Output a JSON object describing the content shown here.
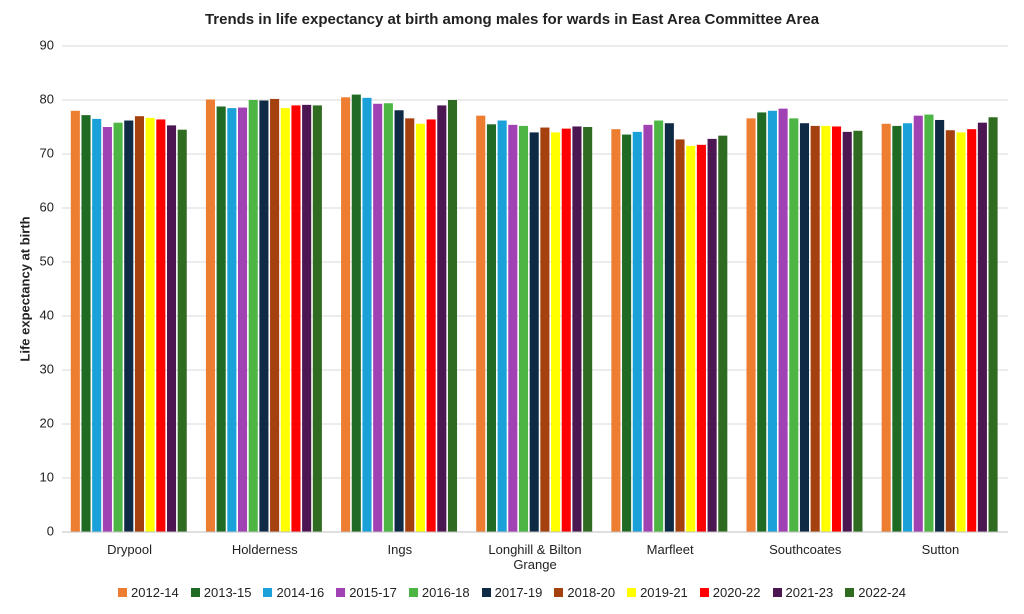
{
  "chart_data": {
    "type": "bar",
    "title": "Trends in life expectancy at birth among males for wards in East Area Committee Area",
    "y_label": "Life expectancy at birth",
    "categories": [
      "Drypool",
      "Holderness",
      "Ings",
      "Longhill & Bilton Grange",
      "Marfleet",
      "Southcoates",
      "Sutton"
    ],
    "ylim": [
      0,
      90
    ],
    "yticks": [
      0,
      10,
      20,
      30,
      40,
      50,
      60,
      70,
      80,
      90
    ],
    "grid": true,
    "series": [
      {
        "name": "2012-14",
        "color": "#ed7d31",
        "values": [
          78.0,
          80.1,
          80.5,
          77.1,
          74.6,
          76.6,
          75.6
        ]
      },
      {
        "name": "2013-15",
        "color": "#1f6b24",
        "values": [
          77.2,
          78.8,
          81.0,
          75.5,
          73.6,
          77.7,
          75.2
        ]
      },
      {
        "name": "2014-16",
        "color": "#1ba1d9",
        "values": [
          76.5,
          78.5,
          80.4,
          76.2,
          74.1,
          78.0,
          75.7
        ]
      },
      {
        "name": "2015-17",
        "color": "#a142b4",
        "values": [
          75.0,
          78.6,
          79.3,
          75.4,
          75.4,
          78.4,
          77.1
        ]
      },
      {
        "name": "2016-18",
        "color": "#4db544",
        "values": [
          75.8,
          80.0,
          79.4,
          75.2,
          76.2,
          76.6,
          77.3
        ]
      },
      {
        "name": "2017-19",
        "color": "#0e2a45",
        "values": [
          76.2,
          79.9,
          78.1,
          74.0,
          75.7,
          75.7,
          76.3
        ]
      },
      {
        "name": "2018-20",
        "color": "#a5400f",
        "values": [
          77.0,
          80.2,
          76.6,
          74.9,
          72.7,
          75.2,
          74.4
        ]
      },
      {
        "name": "2019-21",
        "color": "#ffff00",
        "values": [
          76.7,
          78.5,
          75.6,
          74.0,
          71.5,
          75.2,
          74.0
        ]
      },
      {
        "name": "2020-22",
        "color": "#ff0000",
        "values": [
          76.4,
          79.0,
          76.4,
          74.7,
          71.7,
          75.1,
          74.6
        ]
      },
      {
        "name": "2021-23",
        "color": "#4b1652",
        "values": [
          75.3,
          79.1,
          79.0,
          75.1,
          72.8,
          74.1,
          75.8
        ]
      },
      {
        "name": "2022-24",
        "color": "#2f6b20",
        "values": [
          74.5,
          79.0,
          80.0,
          75.0,
          73.4,
          74.3,
          76.8
        ]
      }
    ]
  }
}
